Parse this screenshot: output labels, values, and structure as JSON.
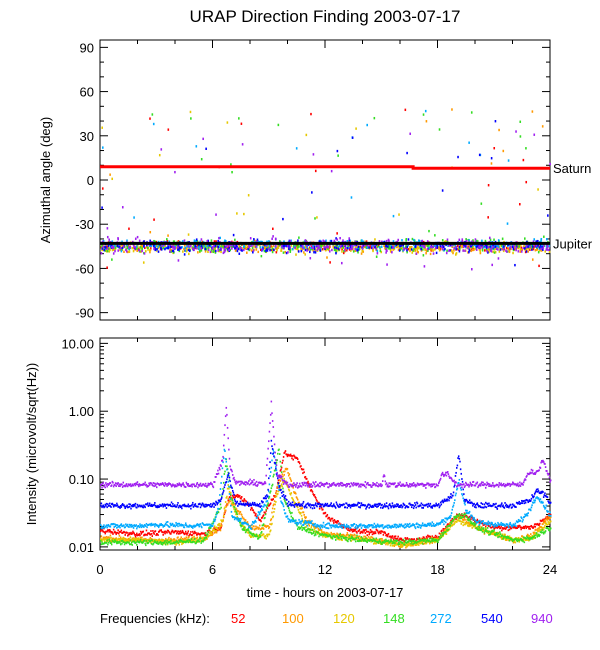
{
  "chart_data": [
    {
      "type": "scatter",
      "title": "URAP Direction Finding  2003-07-17",
      "xlabel": "",
      "ylabel": "Azimuthal angle (deg)",
      "xlim": [
        0,
        24
      ],
      "ylim": [
        -95,
        95
      ],
      "yticks": [
        {
          "v": 90,
          "label": "90"
        },
        {
          "v": 60,
          "label": "60"
        },
        {
          "v": 30,
          "label": "30"
        },
        {
          "v": 0,
          "label": "0"
        },
        {
          "v": -30,
          "label": "-30"
        },
        {
          "v": -60,
          "label": "-60"
        },
        {
          "v": -90,
          "label": "-90"
        }
      ],
      "reference_lines": [
        {
          "name": "Saturn",
          "x": [
            0,
            16.7,
            16.7,
            24
          ],
          "y": [
            9,
            9,
            8,
            8
          ],
          "color": "#ff0000"
        },
        {
          "name": "Jupiter",
          "x": [
            0,
            24
          ],
          "y": [
            -43,
            -43
          ],
          "color": "#000000"
        }
      ],
      "series": [
        {
          "name": "52",
          "color": "#ff0000",
          "band_center": -44,
          "band_spread": 6
        },
        {
          "name": "100",
          "color": "#ff9900",
          "band_center": -45,
          "band_spread": 7
        },
        {
          "name": "120",
          "color": "#e6c800",
          "band_center": -45,
          "band_spread": 7
        },
        {
          "name": "148",
          "color": "#33dd22",
          "band_center": -44,
          "band_spread": 9
        },
        {
          "name": "272",
          "color": "#00aaff",
          "band_center": -43,
          "band_spread": 6
        },
        {
          "name": "540",
          "color": "#0000ff",
          "band_center": -44,
          "band_spread": 8
        },
        {
          "name": "940",
          "color": "#a020f0",
          "band_center": -44,
          "band_spread": 9
        }
      ]
    },
    {
      "type": "scatter",
      "title": "",
      "xlabel": "time - hours on 2003-07-17",
      "ylabel": "Intensity (microvolt/sqrt(Hz))",
      "yscale": "log",
      "xlim": [
        0,
        24
      ],
      "ylim": [
        0.009,
        12
      ],
      "xticks": [
        {
          "v": 0,
          "label": "0"
        },
        {
          "v": 6,
          "label": "6"
        },
        {
          "v": 12,
          "label": "12"
        },
        {
          "v": 18,
          "label": "18"
        },
        {
          "v": 24,
          "label": "24"
        }
      ],
      "yticks": [
        {
          "v": 10,
          "label": "10.00"
        },
        {
          "v": 1,
          "label": "1.00"
        },
        {
          "v": 0.1,
          "label": "0.10"
        },
        {
          "v": 0.01,
          "label": "0.01"
        }
      ],
      "series": [
        {
          "name": "52",
          "color": "#ff0000",
          "baseline": [
            [
              0,
              0.018
            ],
            [
              2,
              0.016
            ],
            [
              4,
              0.017
            ],
            [
              5.5,
              0.016
            ],
            [
              6.4,
              0.02
            ],
            [
              6.8,
              0.05
            ],
            [
              7.3,
              0.06
            ],
            [
              8,
              0.04
            ],
            [
              8.5,
              0.025
            ],
            [
              9.3,
              0.06
            ],
            [
              9.8,
              0.25
            ],
            [
              10.5,
              0.2
            ],
            [
              11,
              0.1
            ],
            [
              11.5,
              0.05
            ],
            [
              12,
              0.03
            ],
            [
              13,
              0.02
            ],
            [
              14,
              0.017
            ],
            [
              15,
              0.017
            ],
            [
              16,
              0.013
            ],
            [
              17,
              0.013
            ],
            [
              18,
              0.015
            ],
            [
              19,
              0.03
            ],
            [
              19.5,
              0.03
            ],
            [
              20,
              0.025
            ],
            [
              21,
              0.02
            ],
            [
              22,
              0.02
            ],
            [
              23,
              0.02
            ],
            [
              24,
              0.03
            ]
          ]
        },
        {
          "name": "100",
          "color": "#ff9900",
          "baseline": [
            [
              0,
              0.014
            ],
            [
              2,
              0.013
            ],
            [
              4,
              0.013
            ],
            [
              5.5,
              0.014
            ],
            [
              6.4,
              0.02
            ],
            [
              6.8,
              0.05
            ],
            [
              7.2,
              0.04
            ],
            [
              8,
              0.02
            ],
            [
              9,
              0.02
            ],
            [
              9.4,
              0.08
            ],
            [
              9.9,
              0.15
            ],
            [
              10.4,
              0.06
            ],
            [
              11,
              0.025
            ],
            [
              12,
              0.016
            ],
            [
              14,
              0.014
            ],
            [
              16,
              0.011
            ],
            [
              17,
              0.012
            ],
            [
              18,
              0.013
            ],
            [
              19,
              0.03
            ],
            [
              20,
              0.02
            ],
            [
              22,
              0.013
            ],
            [
              23,
              0.015
            ],
            [
              24,
              0.03
            ]
          ]
        },
        {
          "name": "120",
          "color": "#e6c800",
          "baseline": [
            [
              0,
              0.013
            ],
            [
              2,
              0.013
            ],
            [
              4,
              0.012
            ],
            [
              5.5,
              0.013
            ],
            [
              6.5,
              0.025
            ],
            [
              6.8,
              0.08
            ],
            [
              7.2,
              0.03
            ],
            [
              8,
              0.015
            ],
            [
              9,
              0.015
            ],
            [
              9.4,
              0.06
            ],
            [
              9.8,
              0.1
            ],
            [
              10.3,
              0.05
            ],
            [
              11,
              0.02
            ],
            [
              12,
              0.015
            ],
            [
              14,
              0.013
            ],
            [
              16,
              0.011
            ],
            [
              18,
              0.013
            ],
            [
              19,
              0.025
            ],
            [
              20,
              0.02
            ],
            [
              22,
              0.013
            ],
            [
              23,
              0.014
            ],
            [
              24,
              0.025
            ]
          ]
        },
        {
          "name": "148",
          "color": "#33dd22",
          "baseline": [
            [
              0,
              0.012
            ],
            [
              2,
              0.012
            ],
            [
              4,
              0.012
            ],
            [
              5.5,
              0.013
            ],
            [
              6.4,
              0.04
            ],
            [
              6.7,
              0.2
            ],
            [
              7,
              0.05
            ],
            [
              7.5,
              0.02
            ],
            [
              8.5,
              0.014
            ],
            [
              9.2,
              0.1
            ],
            [
              9.5,
              0.3
            ],
            [
              9.8,
              0.05
            ],
            [
              10.5,
              0.02
            ],
            [
              12,
              0.015
            ],
            [
              14,
              0.013
            ],
            [
              16,
              0.012
            ],
            [
              18,
              0.013
            ],
            [
              19,
              0.03
            ],
            [
              19.5,
              0.03
            ],
            [
              20,
              0.02
            ],
            [
              22,
              0.013
            ],
            [
              23,
              0.014
            ],
            [
              24,
              0.02
            ]
          ]
        },
        {
          "name": "272",
          "color": "#00aaff",
          "baseline": [
            [
              0,
              0.021
            ],
            [
              2,
              0.021
            ],
            [
              3,
              0.022
            ],
            [
              5,
              0.021
            ],
            [
              6,
              0.022
            ],
            [
              6.3,
              0.04
            ],
            [
              6.6,
              0.3
            ],
            [
              7,
              0.03
            ],
            [
              8,
              0.02
            ],
            [
              8.9,
              0.05
            ],
            [
              9.2,
              0.3
            ],
            [
              9.6,
              0.05
            ],
            [
              10,
              0.025
            ],
            [
              12,
              0.021
            ],
            [
              16,
              0.021
            ],
            [
              18,
              0.022
            ],
            [
              18.7,
              0.03
            ],
            [
              19.1,
              0.1
            ],
            [
              19.5,
              0.035
            ],
            [
              20,
              0.024
            ],
            [
              22,
              0.021
            ],
            [
              22.7,
              0.03
            ],
            [
              23.3,
              0.06
            ],
            [
              23.7,
              0.04
            ],
            [
              24,
              0.03
            ]
          ]
        },
        {
          "name": "540",
          "color": "#0000ff",
          "baseline": [
            [
              0,
              0.042
            ],
            [
              6,
              0.042
            ],
            [
              6.4,
              0.05
            ],
            [
              6.8,
              0.12
            ],
            [
              7.2,
              0.045
            ],
            [
              8.5,
              0.042
            ],
            [
              8.9,
              0.06
            ],
            [
              9.1,
              0.35
            ],
            [
              9.5,
              0.08
            ],
            [
              10,
              0.045
            ],
            [
              11,
              0.042
            ],
            [
              18,
              0.042
            ],
            [
              18.8,
              0.06
            ],
            [
              19.1,
              0.25
            ],
            [
              19.4,
              0.05
            ],
            [
              20,
              0.042
            ],
            [
              22,
              0.042
            ],
            [
              22.9,
              0.05
            ],
            [
              23.3,
              0.07
            ],
            [
              23.7,
              0.06
            ],
            [
              24,
              0.045
            ]
          ]
        },
        {
          "name": "940",
          "color": "#a020f0",
          "baseline": [
            [
              0,
              0.085
            ],
            [
              6,
              0.085
            ],
            [
              6.5,
              0.2
            ],
            [
              6.7,
              1.2
            ],
            [
              6.9,
              0.15
            ],
            [
              7.2,
              0.09
            ],
            [
              8.8,
              0.09
            ],
            [
              9.1,
              1.3
            ],
            [
              9.4,
              0.12
            ],
            [
              10,
              0.085
            ],
            [
              15,
              0.085
            ],
            [
              15.1,
              0.13
            ],
            [
              15.2,
              0.085
            ],
            [
              18,
              0.085
            ],
            [
              18.2,
              0.12
            ],
            [
              18.5,
              0.12
            ],
            [
              19,
              0.085
            ],
            [
              22.5,
              0.085
            ],
            [
              22.8,
              0.13
            ],
            [
              23.3,
              0.13
            ],
            [
              23.6,
              0.2
            ],
            [
              24,
              0.09
            ]
          ]
        }
      ]
    }
  ],
  "legend": {
    "label": "Frequencies (kHz):",
    "items": [
      {
        "text": "52",
        "color": "#ff0000"
      },
      {
        "text": "100",
        "color": "#ff9900"
      },
      {
        "text": "120",
        "color": "#e6c800"
      },
      {
        "text": "148",
        "color": "#33dd22"
      },
      {
        "text": "272",
        "color": "#00aaff"
      },
      {
        "text": "540",
        "color": "#0000ff"
      },
      {
        "text": "940",
        "color": "#a020f0"
      }
    ]
  }
}
